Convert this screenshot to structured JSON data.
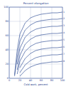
{
  "chart_data": {
    "type": "line",
    "title": "Percent elongation",
    "x_label": "Cold work, percent",
    "x": [
      5,
      10,
      15,
      20,
      30,
      40,
      50,
      60,
      70,
      80,
      90,
      100
    ],
    "series": [
      {
        "name": "1",
        "color": "#1a3a8a",
        "values": [
          null,
          5,
          40,
          62,
          78,
          85,
          88,
          90,
          91,
          92,
          92,
          93
        ]
      },
      {
        "name": "2",
        "color": "#1a3a8a",
        "values": [
          null,
          3,
          30,
          52,
          68,
          75,
          79,
          81,
          82,
          83,
          83,
          84
        ]
      },
      {
        "name": "3",
        "color": "#1a3a8a",
        "values": [
          null,
          null,
          20,
          42,
          58,
          65,
          69,
          71,
          72,
          73,
          73,
          74
        ]
      },
      {
        "name": "4",
        "color": "#1a3a8a",
        "values": [
          null,
          null,
          12,
          32,
          48,
          55,
          59,
          61,
          62,
          63,
          63,
          64
        ]
      },
      {
        "name": "5",
        "color": "#1a3a8a",
        "values": [
          null,
          null,
          6,
          24,
          38,
          45,
          49,
          51,
          52,
          53,
          53,
          54
        ]
      },
      {
        "name": "6",
        "color": "#1a3a8a",
        "values": [
          null,
          null,
          null,
          15,
          28,
          35,
          39,
          41,
          42,
          43,
          43,
          44
        ]
      },
      {
        "name": "7",
        "color": "#1a3a8a",
        "values": [
          null,
          null,
          null,
          8,
          19,
          25,
          29,
          31,
          32,
          33,
          33,
          34
        ]
      },
      {
        "name": "8",
        "color": "#1a3a8a",
        "values": [
          null,
          null,
          null,
          3,
          11,
          16,
          19,
          21,
          22,
          23,
          23,
          24
        ]
      }
    ],
    "xlim": [
      0,
      100
    ],
    "xticks": [
      0,
      20,
      40,
      60,
      80,
      100
    ],
    "ylim": [
      0,
      100
    ],
    "yticks": [
      0,
      20,
      40,
      60,
      80,
      100
    ],
    "grid": true
  }
}
